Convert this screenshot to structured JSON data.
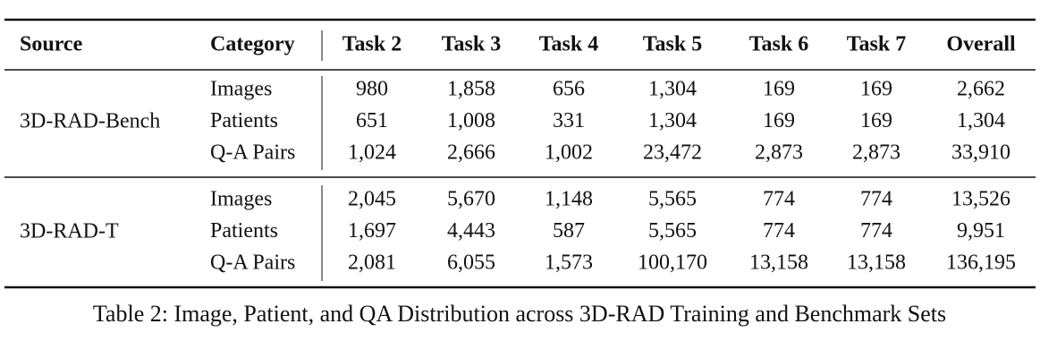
{
  "table": {
    "header": [
      "Source",
      "Category",
      "Task 2",
      "Task 3",
      "Task 4",
      "Task 5",
      "Task 6",
      "Task 7",
      "Overall"
    ],
    "groups": [
      {
        "source": "3D-RAD-Bench",
        "rows": [
          [
            "Images",
            "980",
            "1,858",
            "656",
            "1,304",
            "169",
            "169",
            "2,662"
          ],
          [
            "Patients",
            "651",
            "1,008",
            "331",
            "1,304",
            "169",
            "169",
            "1,304"
          ],
          [
            "Q-A Pairs",
            "1,024",
            "2,666",
            "1,002",
            "23,472",
            "2,873",
            "2,873",
            "33,910"
          ]
        ]
      },
      {
        "source": "3D-RAD-T",
        "rows": [
          [
            "Images",
            "2,045",
            "5,670",
            "1,148",
            "5,565",
            "774",
            "774",
            "13,526"
          ],
          [
            "Patients",
            "1,697",
            "4,443",
            "587",
            "5,565",
            "774",
            "774",
            "9,951"
          ],
          [
            "Q-A Pairs",
            "2,081",
            "6,055",
            "1,573",
            "100,170",
            "13,158",
            "13,158",
            "136,195"
          ]
        ]
      }
    ],
    "caption": "Table 2: Image, Patient, and QA Distribution across 3D-RAD Training and Benchmark Sets"
  }
}
